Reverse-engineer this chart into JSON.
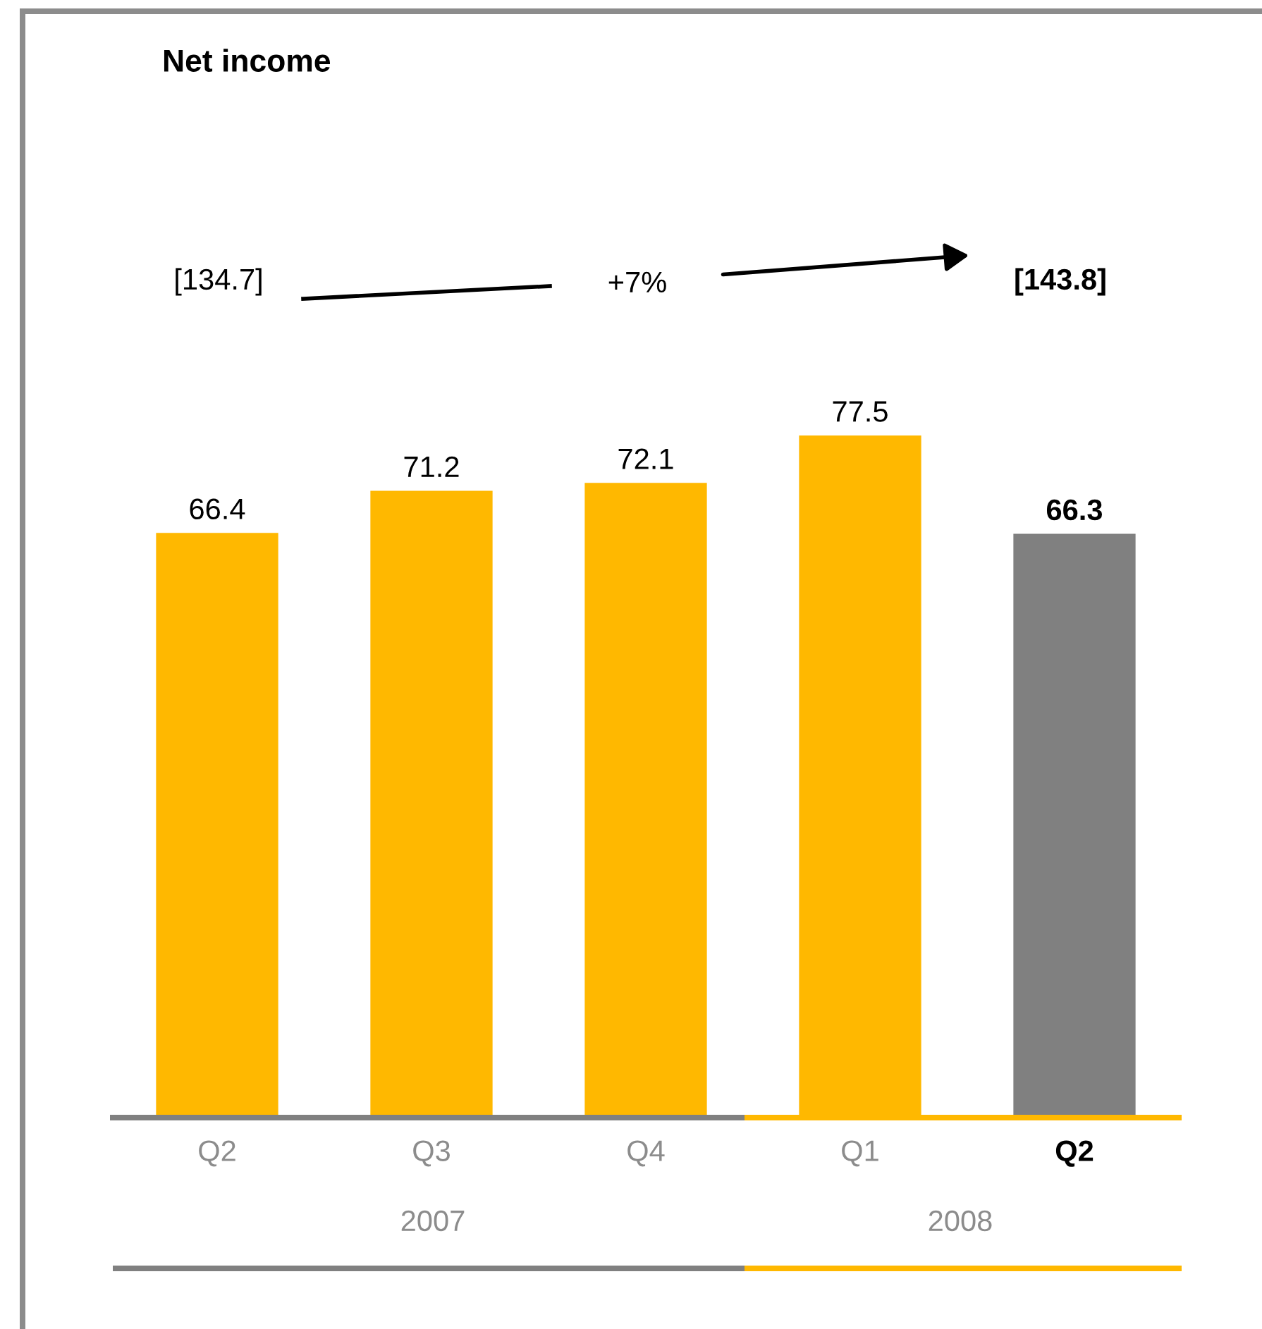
{
  "chart_data": {
    "type": "bar",
    "title": "Net income",
    "categories": [
      "Q2",
      "Q3",
      "Q4",
      "Q1",
      "Q2"
    ],
    "values": [
      66.4,
      71.2,
      72.1,
      77.5,
      66.3
    ],
    "colors": [
      "#ffb800",
      "#ffb800",
      "#ffb800",
      "#ffb800",
      "#808080"
    ],
    "data_labels": true,
    "annotations": [
      "[134.7]",
      "+7%",
      "[143.8]",
      "2007",
      "2008"
    ]
  }
}
